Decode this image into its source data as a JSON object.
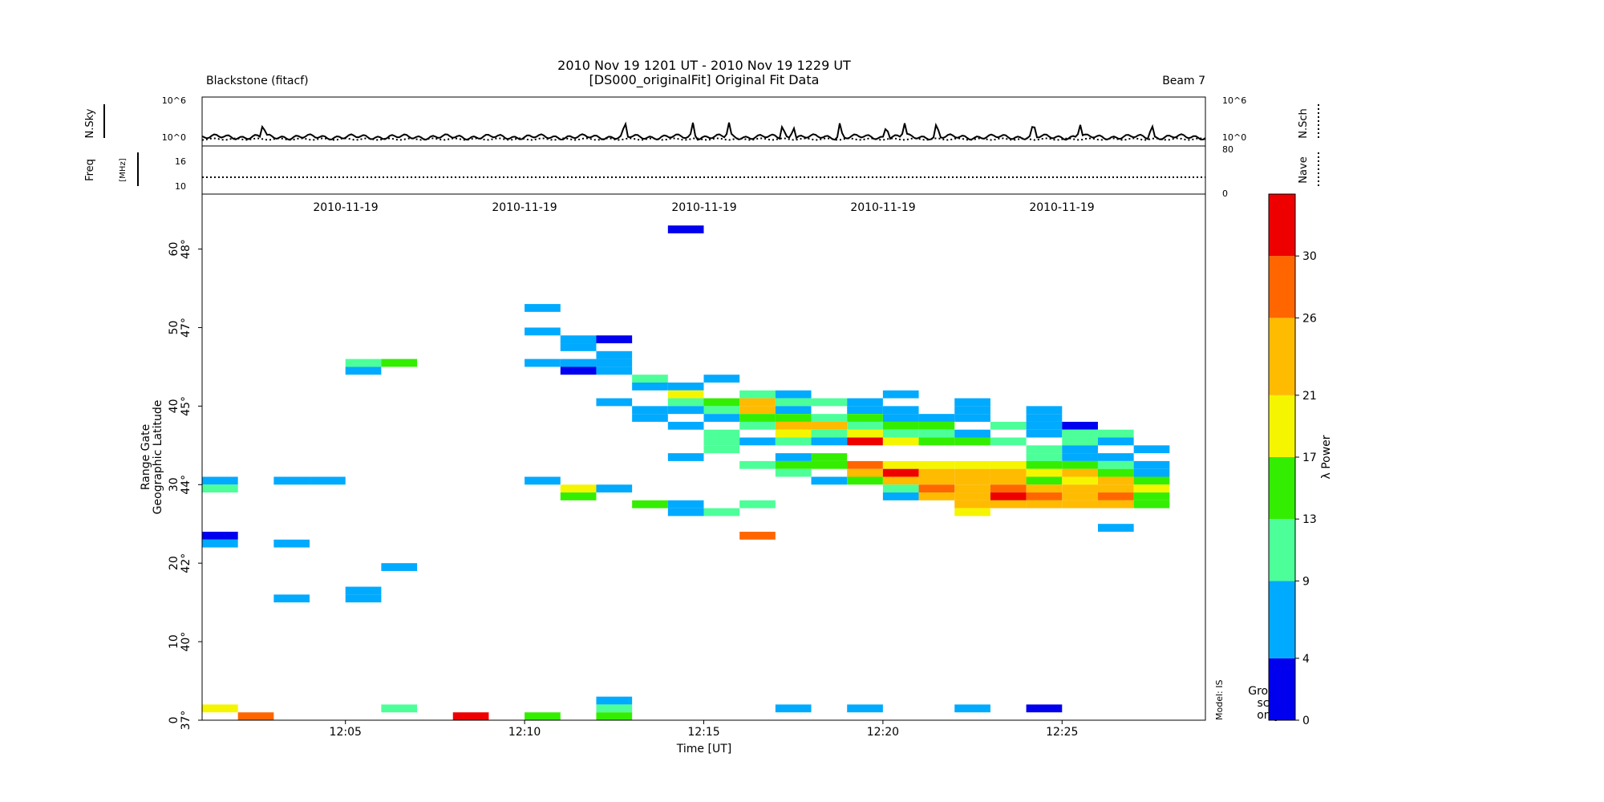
{
  "header": {
    "title_line1": "2010 Nov 19 1201 UT - 2010 Nov 19 1229 UT",
    "title_line2": "[DS000_originalFit] Original Fit Data",
    "radar": "Blackstone  (fitacf)",
    "beam": "Beam 7"
  },
  "panels": {
    "noise": {
      "left_label": "N.Sky",
      "right_label": "N.Sch",
      "tick_top": "10^6",
      "tick_bottom": "10^0"
    },
    "freq": {
      "left_label": "Freq",
      "left_unit": "[MHz]",
      "left_ticks": [
        "16",
        "10"
      ],
      "right_label": "Nave",
      "right_ticks": [
        "80",
        "0"
      ]
    },
    "date_labels": [
      "2010-11-19",
      "2010-11-19",
      "2010-11-19",
      "2010-11-19",
      "2010-11-19"
    ]
  },
  "main_plot": {
    "ylabel_line1": "Range Gate",
    "ylabel_line2": "Geographic Latitude",
    "xlabel": "Time [UT]",
    "model_label": "Model: IS",
    "ground_scatter_label": [
      "Ground",
      "scat",
      "only"
    ]
  },
  "colorbar": {
    "label": "λ Power",
    "ticks": [
      "0",
      "4",
      "9",
      "13",
      "17",
      "21",
      "26",
      "30"
    ],
    "colors": [
      "#0000ee",
      "#00aaff",
      "#4dff99",
      "#33ee00",
      "#f5f500",
      "#ffbb00",
      "#ff6600",
      "#ee0000"
    ]
  },
  "chart_data": {
    "type": "heatmap",
    "title": "2010 Nov 19 1201 UT - 2010 Nov 19 1229 UT",
    "subtitle": "[DS000_originalFit] Original Fit Data",
    "xlabel": "Time [UT]",
    "ylabel": "Range Gate",
    "y2label": "Geographic Latitude",
    "xlim_minutes_after_1200": [
      1,
      29
    ],
    "ylim_range_gate": [
      0,
      67
    ],
    "x_ticks": [
      "12:05",
      "12:10",
      "12:15",
      "12:20",
      "12:25"
    ],
    "x_tick_values": [
      5,
      10,
      15,
      20,
      25
    ],
    "y_ticks_gate": [
      "0",
      "10",
      "20",
      "30",
      "40",
      "50",
      "60"
    ],
    "y_ticks_gate_values": [
      0,
      10,
      20,
      30,
      40,
      50,
      60
    ],
    "y_ticks_lat": [
      "37°",
      "40°",
      "42°",
      "44°",
      "45°",
      "47°",
      "48°"
    ],
    "y_ticks_lat_gate_values": [
      0,
      10,
      20,
      30,
      40,
      50,
      60
    ],
    "value_label": "λ Power",
    "value_range": [
      0,
      34
    ],
    "cells": [
      {
        "t": 2,
        "g": 1,
        "v": 19
      },
      {
        "t": 2,
        "g": 23,
        "v": 2
      },
      {
        "t": 2,
        "g": 22,
        "v": 7
      },
      {
        "t": 2,
        "g": 30,
        "v": 7
      },
      {
        "t": 2,
        "g": 29,
        "v": 11
      },
      {
        "t": 3,
        "g": 0,
        "v": 28
      },
      {
        "t": 4,
        "g": 30,
        "v": 7
      },
      {
        "t": 4,
        "g": 22,
        "v": 7
      },
      {
        "t": 4,
        "g": 15,
        "v": 7
      },
      {
        "t": 5,
        "g": 30,
        "v": 7
      },
      {
        "t": 6,
        "g": 45,
        "v": 11
      },
      {
        "t": 6,
        "g": 44,
        "v": 7
      },
      {
        "t": 6,
        "g": 16,
        "v": 7
      },
      {
        "t": 6,
        "g": 15,
        "v": 7
      },
      {
        "t": 7,
        "g": 45,
        "v": 15
      },
      {
        "t": 7,
        "g": 19,
        "v": 7
      },
      {
        "t": 7,
        "g": 1,
        "v": 11
      },
      {
        "t": 9,
        "g": 0,
        "v": 32
      },
      {
        "t": 11,
        "g": 52,
        "v": 7
      },
      {
        "t": 11,
        "g": 49,
        "v": 7
      },
      {
        "t": 11,
        "g": 45,
        "v": 7
      },
      {
        "t": 11,
        "g": 30,
        "v": 7
      },
      {
        "t": 11,
        "g": 0,
        "v": 15
      },
      {
        "t": 12,
        "g": 48,
        "v": 7
      },
      {
        "t": 12,
        "g": 47,
        "v": 7
      },
      {
        "t": 12,
        "g": 45,
        "v": 7
      },
      {
        "t": 12,
        "g": 44,
        "v": 2
      },
      {
        "t": 12,
        "g": 29,
        "v": 19
      },
      {
        "t": 12,
        "g": 28,
        "v": 15
      },
      {
        "t": 13,
        "g": 48,
        "v": 2
      },
      {
        "t": 13,
        "g": 46,
        "v": 7
      },
      {
        "t": 13,
        "g": 45,
        "v": 7
      },
      {
        "t": 13,
        "g": 44,
        "v": 7
      },
      {
        "t": 13,
        "g": 40,
        "v": 7
      },
      {
        "t": 13,
        "g": 29,
        "v": 7
      },
      {
        "t": 13,
        "g": 2,
        "v": 7
      },
      {
        "t": 13,
        "g": 1,
        "v": 11
      },
      {
        "t": 13,
        "g": 0,
        "v": 15
      },
      {
        "t": 14,
        "g": 43,
        "v": 11
      },
      {
        "t": 14,
        "g": 42,
        "v": 7
      },
      {
        "t": 14,
        "g": 39,
        "v": 7
      },
      {
        "t": 14,
        "g": 38,
        "v": 7
      },
      {
        "t": 14,
        "g": 27,
        "v": 15
      },
      {
        "t": 15,
        "g": 62,
        "v": 2
      },
      {
        "t": 15,
        "g": 42,
        "v": 7
      },
      {
        "t": 15,
        "g": 41,
        "v": 19
      },
      {
        "t": 15,
        "g": 40,
        "v": 11
      },
      {
        "t": 15,
        "g": 39,
        "v": 7
      },
      {
        "t": 15,
        "g": 37,
        "v": 7
      },
      {
        "t": 15,
        "g": 33,
        "v": 7
      },
      {
        "t": 15,
        "g": 27,
        "v": 7
      },
      {
        "t": 15,
        "g": 26,
        "v": 7
      },
      {
        "t": 16,
        "g": 43,
        "v": 7
      },
      {
        "t": 16,
        "g": 40,
        "v": 15
      },
      {
        "t": 16,
        "g": 39,
        "v": 11
      },
      {
        "t": 16,
        "g": 38,
        "v": 7
      },
      {
        "t": 16,
        "g": 36,
        "v": 11
      },
      {
        "t": 16,
        "g": 35,
        "v": 11
      },
      {
        "t": 16,
        "g": 34,
        "v": 11
      },
      {
        "t": 16,
        "g": 26,
        "v": 11
      },
      {
        "t": 17,
        "g": 41,
        "v": 11
      },
      {
        "t": 17,
        "g": 40,
        "v": 24
      },
      {
        "t": 17,
        "g": 39,
        "v": 24
      },
      {
        "t": 17,
        "g": 38,
        "v": 15
      },
      {
        "t": 17,
        "g": 37,
        "v": 11
      },
      {
        "t": 17,
        "g": 35,
        "v": 7
      },
      {
        "t": 17,
        "g": 32,
        "v": 11
      },
      {
        "t": 17,
        "g": 27,
        "v": 11
      },
      {
        "t": 17,
        "g": 23,
        "v": 28
      },
      {
        "t": 18,
        "g": 41,
        "v": 7
      },
      {
        "t": 18,
        "g": 40,
        "v": 11
      },
      {
        "t": 18,
        "g": 39,
        "v": 7
      },
      {
        "t": 18,
        "g": 38,
        "v": 15
      },
      {
        "t": 18,
        "g": 37,
        "v": 24
      },
      {
        "t": 18,
        "g": 36,
        "v": 19
      },
      {
        "t": 18,
        "g": 35,
        "v": 11
      },
      {
        "t": 18,
        "g": 33,
        "v": 7
      },
      {
        "t": 18,
        "g": 32,
        "v": 15
      },
      {
        "t": 18,
        "g": 31,
        "v": 11
      },
      {
        "t": 18,
        "g": 1,
        "v": 7
      },
      {
        "t": 19,
        "g": 40,
        "v": 11
      },
      {
        "t": 19,
        "g": 38,
        "v": 11
      },
      {
        "t": 19,
        "g": 37,
        "v": 24
      },
      {
        "t": 19,
        "g": 36,
        "v": 11
      },
      {
        "t": 19,
        "g": 35,
        "v": 7
      },
      {
        "t": 19,
        "g": 33,
        "v": 15
      },
      {
        "t": 19,
        "g": 32,
        "v": 15
      },
      {
        "t": 19,
        "g": 30,
        "v": 7
      },
      {
        "t": 20,
        "g": 40,
        "v": 7
      },
      {
        "t": 20,
        "g": 39,
        "v": 7
      },
      {
        "t": 20,
        "g": 38,
        "v": 15
      },
      {
        "t": 20,
        "g": 37,
        "v": 11
      },
      {
        "t": 20,
        "g": 36,
        "v": 19
      },
      {
        "t": 20,
        "g": 35,
        "v": 32
      },
      {
        "t": 20,
        "g": 32,
        "v": 28
      },
      {
        "t": 20,
        "g": 31,
        "v": 24
      },
      {
        "t": 20,
        "g": 30,
        "v": 15
      },
      {
        "t": 20,
        "g": 1,
        "v": 7
      },
      {
        "t": 21,
        "g": 41,
        "v": 7
      },
      {
        "t": 21,
        "g": 39,
        "v": 7
      },
      {
        "t": 21,
        "g": 38,
        "v": 7
      },
      {
        "t": 21,
        "g": 37,
        "v": 15
      },
      {
        "t": 21,
        "g": 36,
        "v": 11
      },
      {
        "t": 21,
        "g": 35,
        "v": 19
      },
      {
        "t": 21,
        "g": 32,
        "v": 19
      },
      {
        "t": 21,
        "g": 31,
        "v": 32
      },
      {
        "t": 21,
        "g": 30,
        "v": 24
      },
      {
        "t": 21,
        "g": 29,
        "v": 11
      },
      {
        "t": 21,
        "g": 28,
        "v": 7
      },
      {
        "t": 22,
        "g": 38,
        "v": 7
      },
      {
        "t": 22,
        "g": 37,
        "v": 15
      },
      {
        "t": 22,
        "g": 36,
        "v": 11
      },
      {
        "t": 22,
        "g": 35,
        "v": 15
      },
      {
        "t": 22,
        "g": 32,
        "v": 19
      },
      {
        "t": 22,
        "g": 31,
        "v": 24
      },
      {
        "t": 22,
        "g": 30,
        "v": 24
      },
      {
        "t": 22,
        "g": 29,
        "v": 28
      },
      {
        "t": 22,
        "g": 28,
        "v": 24
      },
      {
        "t": 23,
        "g": 40,
        "v": 7
      },
      {
        "t": 23,
        "g": 39,
        "v": 7
      },
      {
        "t": 23,
        "g": 38,
        "v": 7
      },
      {
        "t": 23,
        "g": 36,
        "v": 7
      },
      {
        "t": 23,
        "g": 35,
        "v": 15
      },
      {
        "t": 23,
        "g": 32,
        "v": 19
      },
      {
        "t": 23,
        "g": 31,
        "v": 24
      },
      {
        "t": 23,
        "g": 30,
        "v": 24
      },
      {
        "t": 23,
        "g": 29,
        "v": 24
      },
      {
        "t": 23,
        "g": 28,
        "v": 24
      },
      {
        "t": 23,
        "g": 27,
        "v": 24
      },
      {
        "t": 23,
        "g": 26,
        "v": 19
      },
      {
        "t": 23,
        "g": 1,
        "v": 7
      },
      {
        "t": 24,
        "g": 37,
        "v": 11
      },
      {
        "t": 24,
        "g": 35,
        "v": 11
      },
      {
        "t": 24,
        "g": 32,
        "v": 19
      },
      {
        "t": 24,
        "g": 31,
        "v": 24
      },
      {
        "t": 24,
        "g": 30,
        "v": 24
      },
      {
        "t": 24,
        "g": 29,
        "v": 28
      },
      {
        "t": 24,
        "g": 28,
        "v": 32
      },
      {
        "t": 24,
        "g": 27,
        "v": 24
      },
      {
        "t": 25,
        "g": 39,
        "v": 7
      },
      {
        "t": 25,
        "g": 38,
        "v": 7
      },
      {
        "t": 25,
        "g": 37,
        "v": 7
      },
      {
        "t": 25,
        "g": 36,
        "v": 7
      },
      {
        "t": 25,
        "g": 34,
        "v": 11
      },
      {
        "t": 25,
        "g": 33,
        "v": 11
      },
      {
        "t": 25,
        "g": 32,
        "v": 15
      },
      {
        "t": 25,
        "g": 31,
        "v": 19
      },
      {
        "t": 25,
        "g": 30,
        "v": 15
      },
      {
        "t": 25,
        "g": 29,
        "v": 24
      },
      {
        "t": 25,
        "g": 28,
        "v": 28
      },
      {
        "t": 25,
        "g": 27,
        "v": 24
      },
      {
        "t": 25,
        "g": 1,
        "v": 2
      },
      {
        "t": 26,
        "g": 37,
        "v": 2
      },
      {
        "t": 26,
        "g": 36,
        "v": 11
      },
      {
        "t": 26,
        "g": 35,
        "v": 11
      },
      {
        "t": 26,
        "g": 34,
        "v": 7
      },
      {
        "t": 26,
        "g": 33,
        "v": 7
      },
      {
        "t": 26,
        "g": 32,
        "v": 15
      },
      {
        "t": 26,
        "g": 31,
        "v": 24
      },
      {
        "t": 26,
        "g": 30,
        "v": 19
      },
      {
        "t": 26,
        "g": 29,
        "v": 24
      },
      {
        "t": 26,
        "g": 28,
        "v": 24
      },
      {
        "t": 26,
        "g": 27,
        "v": 24
      },
      {
        "t": 27,
        "g": 36,
        "v": 11
      },
      {
        "t": 27,
        "g": 35,
        "v": 7
      },
      {
        "t": 27,
        "g": 33,
        "v": 7
      },
      {
        "t": 27,
        "g": 32,
        "v": 11
      },
      {
        "t": 27,
        "g": 31,
        "v": 15
      },
      {
        "t": 27,
        "g": 30,
        "v": 24
      },
      {
        "t": 27,
        "g": 29,
        "v": 24
      },
      {
        "t": 27,
        "g": 28,
        "v": 28
      },
      {
        "t": 27,
        "g": 27,
        "v": 24
      },
      {
        "t": 27,
        "g": 24,
        "v": 7
      },
      {
        "t": 28,
        "g": 34,
        "v": 7
      },
      {
        "t": 28,
        "g": 32,
        "v": 7
      },
      {
        "t": 28,
        "g": 31,
        "v": 7
      },
      {
        "t": 28,
        "g": 30,
        "v": 15
      },
      {
        "t": 28,
        "g": 29,
        "v": 19
      },
      {
        "t": 28,
        "g": 28,
        "v": 15
      },
      {
        "t": 28,
        "g": 27,
        "v": 15
      }
    ],
    "noise_sky_log10_level": 0.55,
    "noise_search_log10_level": 0.2,
    "noise_sky_spike_times": [
      2.7,
      12.8,
      14.7,
      15.7,
      17.2,
      17.5,
      18.8,
      20.1,
      20.6,
      21.5,
      24.2,
      25.5,
      27.5
    ]
  }
}
